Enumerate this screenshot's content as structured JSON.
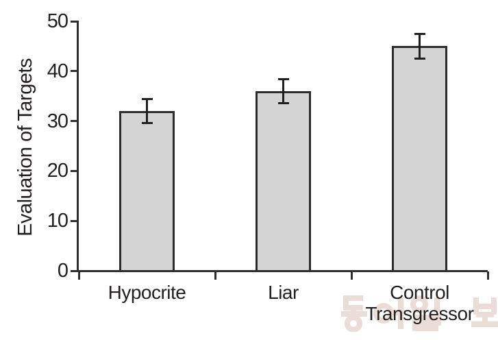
{
  "figure": {
    "background": "#ffffff",
    "text_color": "#231f20",
    "axis_color": "#2e2e2e"
  },
  "chart_data": {
    "type": "bar",
    "categories": [
      "Hypocrite",
      "Liar",
      "Control Transgressor"
    ],
    "values": [
      32,
      36,
      45
    ],
    "errors": [
      2.5,
      2.5,
      2.5
    ],
    "title": "",
    "xlabel": "",
    "ylabel": "Evaluation of Targets",
    "ylim": [
      0,
      50
    ],
    "yticks": [
      0,
      10,
      20,
      30,
      40,
      50
    ],
    "grid": false,
    "legend": "none",
    "bar_fill": "#d4d4d5",
    "bar_border": "#2b2b2b",
    "error_color": "#1f1f1f"
  },
  "watermark": {
    "text": "동아일보",
    "color": "#eadcd6"
  }
}
